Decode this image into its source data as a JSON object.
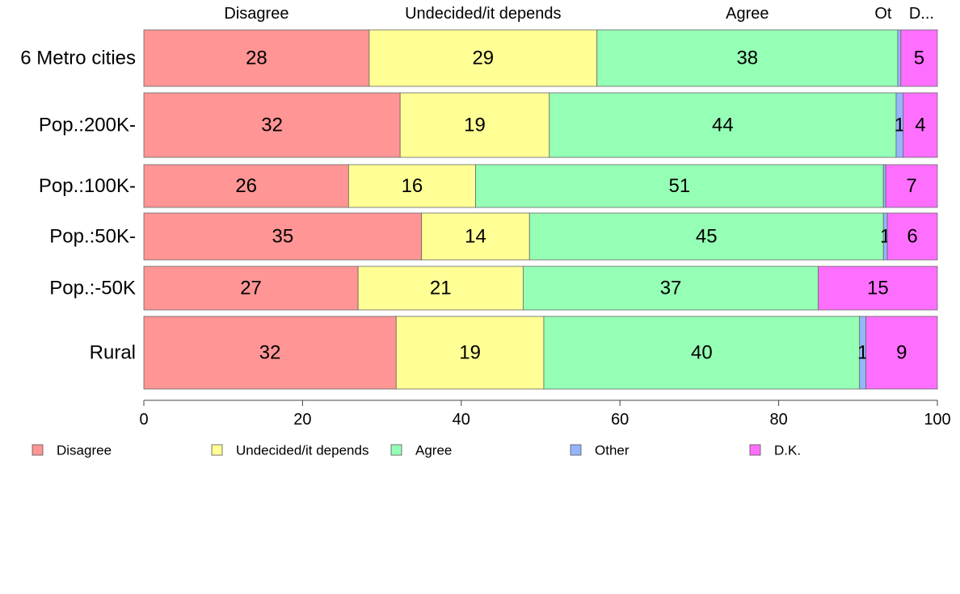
{
  "chart_data": {
    "type": "bar",
    "orientation": "horizontal",
    "stacked": true,
    "title": "",
    "xlabel": "",
    "ylabel": "",
    "xlim": [
      0,
      100
    ],
    "x_ticks": [
      "0",
      "20",
      "40",
      "60",
      "80",
      "100"
    ],
    "categories": [
      "6 Metro cities",
      "Pop.:200K-",
      "Pop.:100K-",
      "Pop.:50K-",
      "Pop.:-50K",
      "Rural"
    ],
    "series": [
      {
        "name": "Disagree",
        "header": "Disagree",
        "color": "#ff9595",
        "values": [
          28.4,
          32.3,
          25.8,
          35.0,
          27.0,
          31.8
        ],
        "labels": [
          "28",
          "32",
          "26",
          "35",
          "27",
          "32"
        ]
      },
      {
        "name": "Undecided/it depends",
        "header": "Undecided/it depends",
        "color": "#ffff95",
        "values": [
          28.7,
          18.8,
          16.0,
          13.6,
          20.8,
          18.6
        ],
        "labels": [
          "29",
          "19",
          "16",
          "14",
          "21",
          "19"
        ]
      },
      {
        "name": "Agree",
        "header": "Agree",
        "color": "#95ffb5",
        "values": [
          37.9,
          43.7,
          51.4,
          44.6,
          37.2,
          39.8
        ],
        "labels": [
          "38",
          "44",
          "51",
          "45",
          "37",
          "40"
        ]
      },
      {
        "name": "Other",
        "header": "Ot",
        "color": "#95b5ff",
        "values": [
          0.4,
          0.9,
          0.3,
          0.5,
          0.0,
          0.8
        ],
        "labels": [
          "",
          "1",
          "",
          "1",
          "",
          "1"
        ]
      },
      {
        "name": "D.K.",
        "header": "D...",
        "color": "#ff6fff",
        "values": [
          4.6,
          4.3,
          6.5,
          6.3,
          15.0,
          9.0
        ],
        "labels": [
          "5",
          "4",
          "7",
          "6",
          "15",
          "9"
        ]
      }
    ],
    "legend": {
      "placement": "bottom",
      "entries": [
        "Disagree",
        "Undecided/it depends",
        "Agree",
        "Other",
        "D.K."
      ]
    },
    "grid": false
  }
}
